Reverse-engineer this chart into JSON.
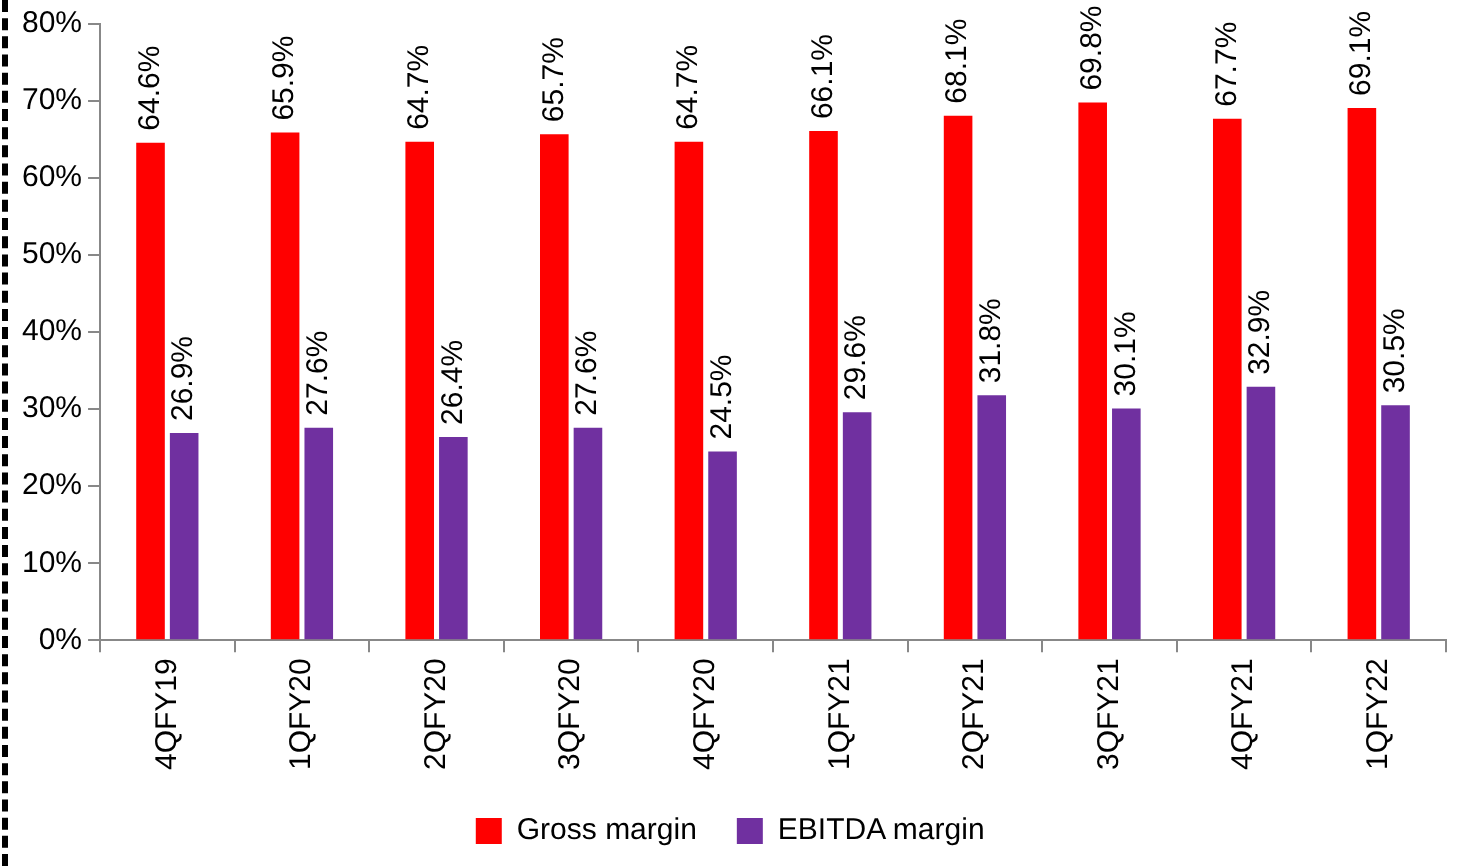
{
  "chart_data": {
    "type": "bar",
    "categories": [
      "4QFY19",
      "1QFY20",
      "2QFY20",
      "3QFY20",
      "4QFY20",
      "1QFY21",
      "2QFY21",
      "3QFY21",
      "4QFY21",
      "1QFY22"
    ],
    "series": [
      {
        "name": "Gross margin",
        "color": "#ff0000",
        "values": [
          64.6,
          65.9,
          64.7,
          65.7,
          64.7,
          66.1,
          68.1,
          69.8,
          67.7,
          69.1
        ],
        "value_labels": [
          "64.6%",
          "65.9%",
          "64.7%",
          "65.7%",
          "64.7%",
          "66.1%",
          "68.1%",
          "69.8%",
          "67.7%",
          "69.1%"
        ]
      },
      {
        "name": "EBITDA margin",
        "color": "#7030a0",
        "values": [
          26.9,
          27.6,
          26.4,
          27.6,
          24.5,
          29.6,
          31.8,
          30.1,
          32.9,
          30.5
        ],
        "value_labels": [
          "26.9%",
          "27.6%",
          "26.4%",
          "27.6%",
          "24.5%",
          "29.6%",
          "31.8%",
          "30.1%",
          "32.9%",
          "30.5%"
        ]
      }
    ],
    "ylim": [
      0,
      80
    ],
    "yticks": [
      {
        "value": 0,
        "label": "0%"
      },
      {
        "value": 10,
        "label": "10%"
      },
      {
        "value": 20,
        "label": "20%"
      },
      {
        "value": 30,
        "label": "30%"
      },
      {
        "value": 40,
        "label": "40%"
      },
      {
        "value": 50,
        "label": "50%"
      },
      {
        "value": 60,
        "label": "60%"
      },
      {
        "value": 70,
        "label": "70%"
      },
      {
        "value": 80,
        "label": "80%"
      }
    ],
    "grid": false,
    "legend": "bottom"
  }
}
